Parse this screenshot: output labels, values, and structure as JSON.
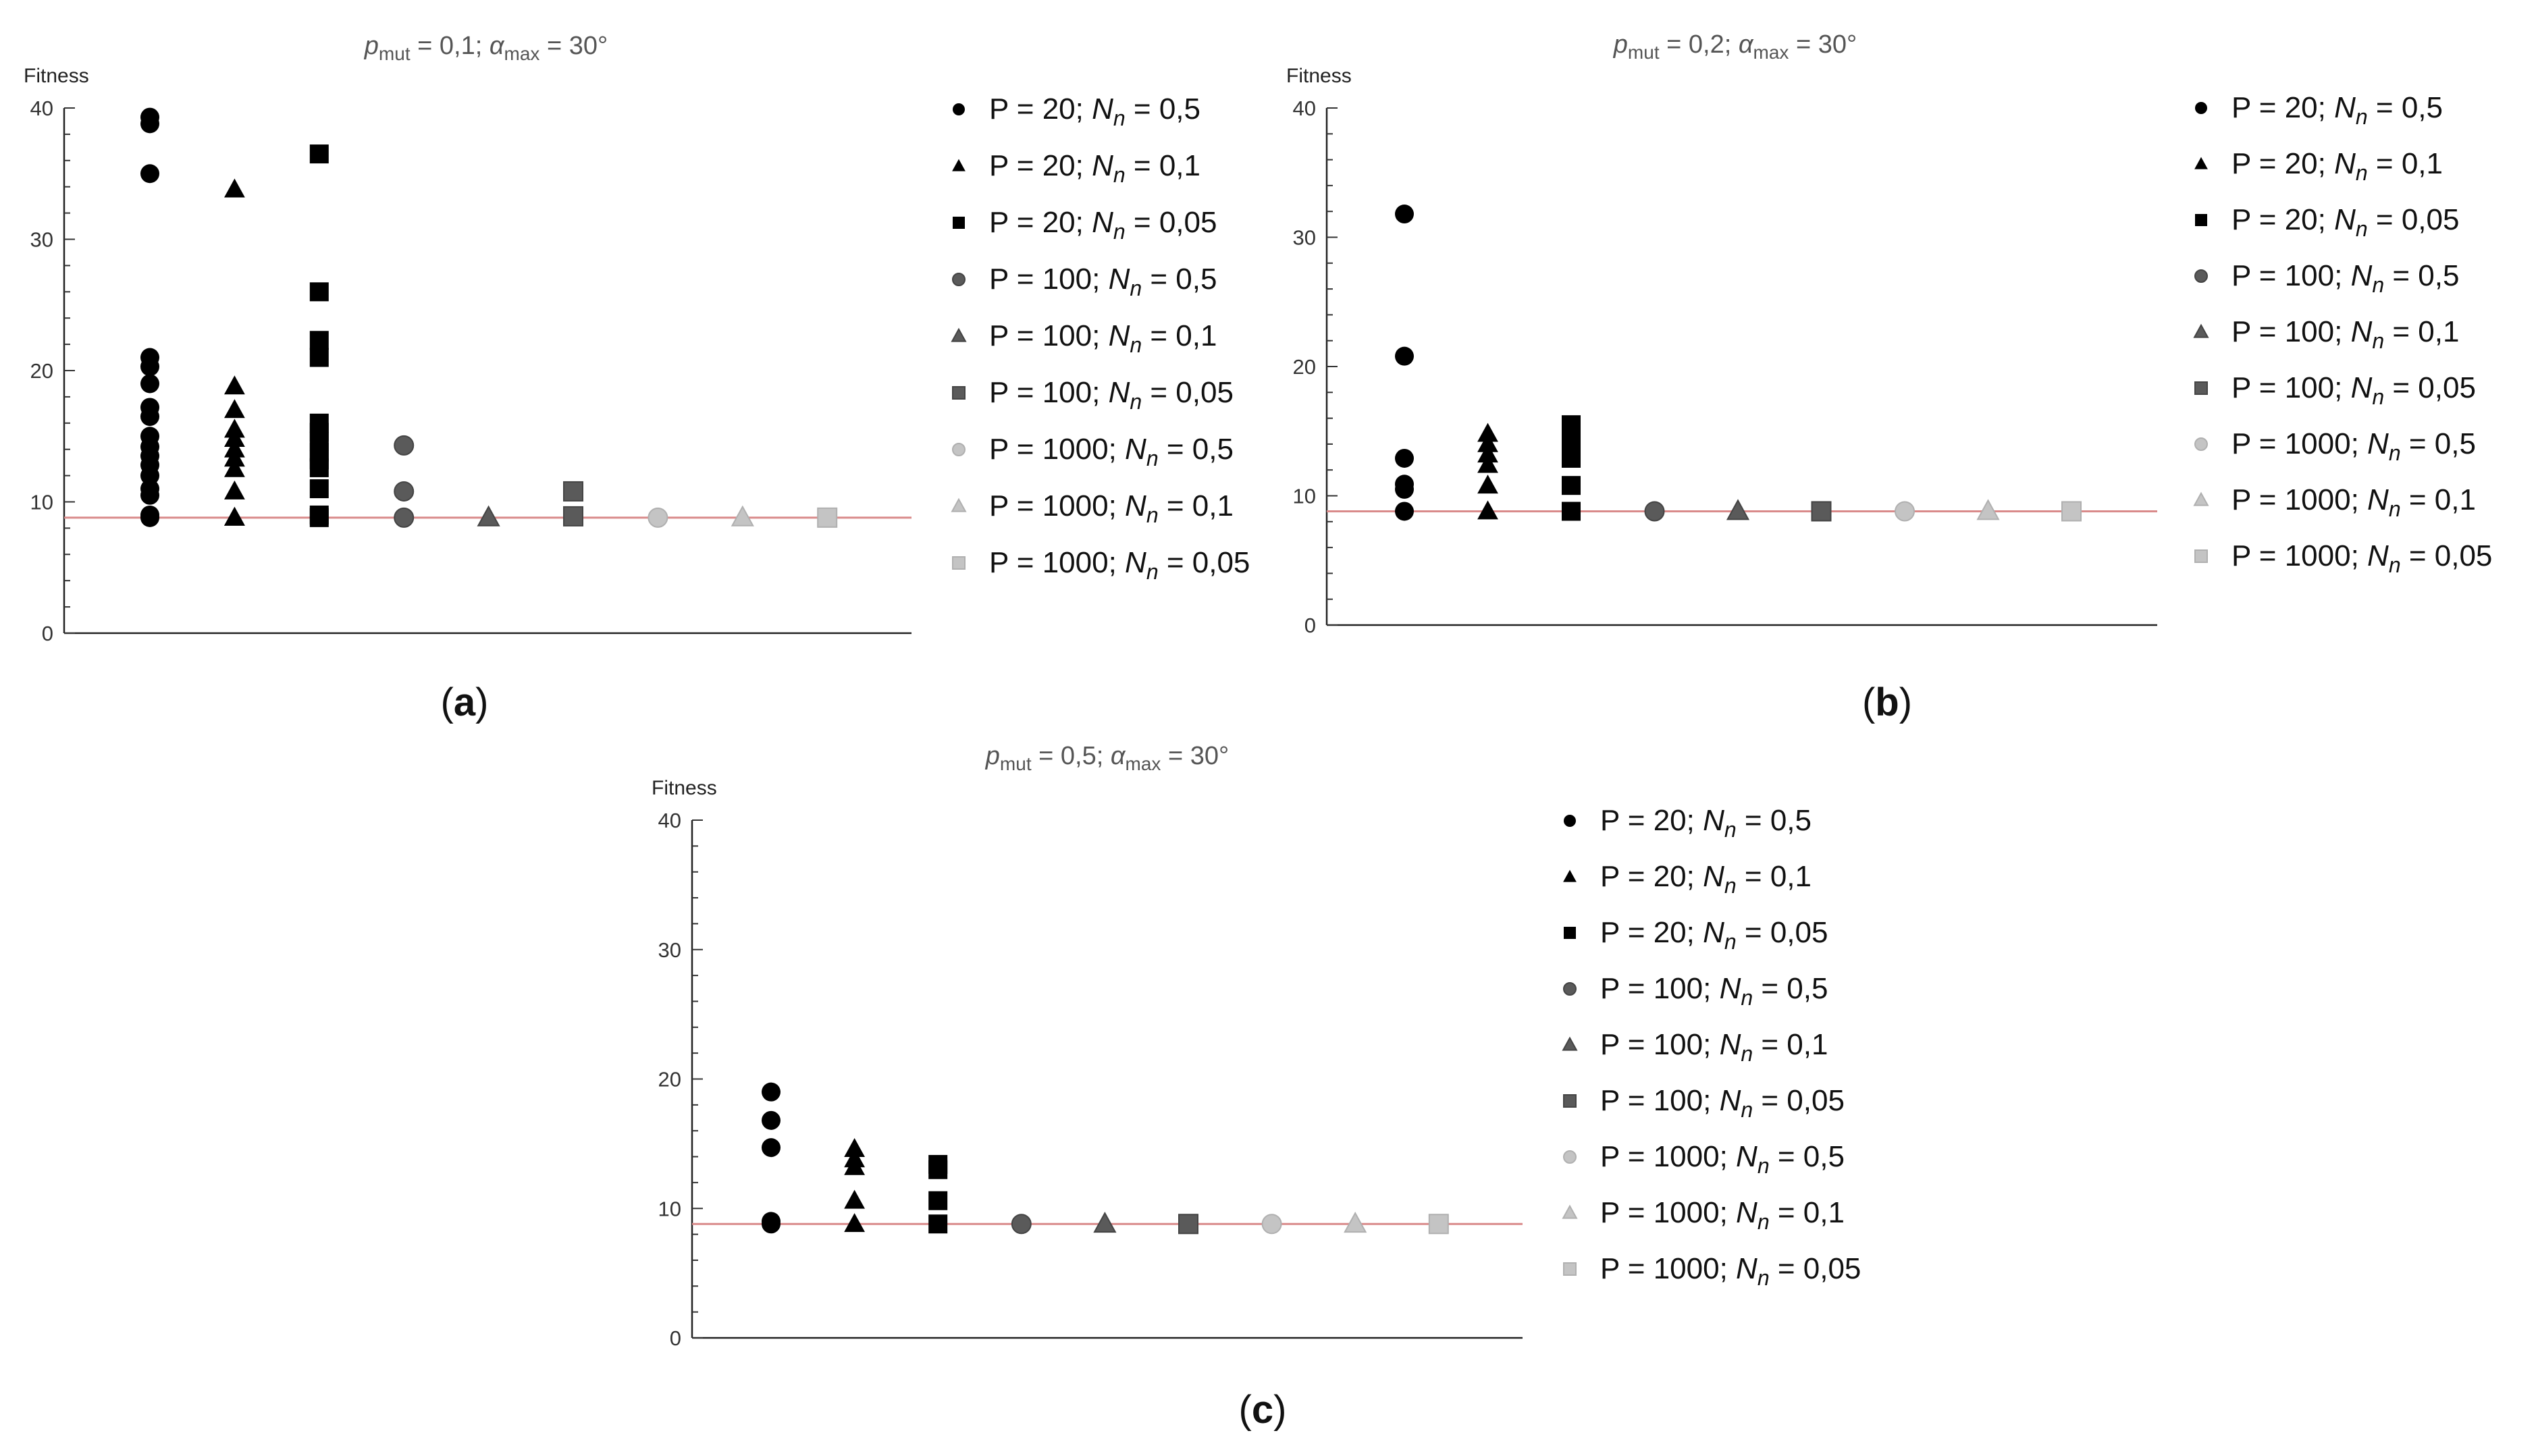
{
  "figure": {
    "panel_labels": [
      "a",
      "b",
      "c"
    ],
    "shared": {
      "ylabel": "Fitness",
      "ylim": [
        0,
        40
      ],
      "yticks": [
        "0",
        "10",
        "20",
        "30",
        "40"
      ],
      "reference_line": {
        "value": 8.8,
        "color": "#d98a8a"
      }
    }
  },
  "chart_data": [
    {
      "type": "scatter",
      "title": {
        "p": "p",
        "sub1": "mut",
        "mid": " = 0,1; ",
        "alpha": "α",
        "sub2": "max",
        "end": " = 30°"
      },
      "legend": [
        {
          "pre": "P = 20; ",
          "n": "N",
          "sub": "n",
          "post": " = 0,5"
        },
        {
          "pre": "P = 20; ",
          "n": "N",
          "sub": "n",
          "post": " = 0,1"
        },
        {
          "pre": "P = 20; ",
          "n": "N",
          "sub": "n",
          "post": " = 0,05"
        },
        {
          "pre": "P = 100; ",
          "n": "N",
          "sub": "n",
          "post": " = 0,5"
        },
        {
          "pre": "P = 100; ",
          "n": "N",
          "sub": "n",
          "post": " = 0,1"
        },
        {
          "pre": "P = 100; ",
          "n": "N",
          "sub": "n",
          "post": " = 0,05"
        },
        {
          "pre": "P = 1000; ",
          "n": "N",
          "sub": "n",
          "post": " = 0,5"
        },
        {
          "pre": "P = 1000; ",
          "n": "N",
          "sub": "n",
          "post": " = 0,1"
        },
        {
          "pre": "P = 1000; ",
          "n": "N",
          "sub": "n",
          "post": " = 0,05"
        }
      ],
      "series": [
        {
          "shape": "circle",
          "color": "#000000",
          "values": [
            39.3,
            38.8,
            35,
            21,
            20.3,
            19,
            17.2,
            16.5,
            15,
            14.2,
            13.5,
            12.8,
            12,
            11,
            10.5,
            9,
            8.8
          ]
        },
        {
          "shape": "triangle",
          "color": "#000000",
          "values": [
            33.8,
            18.8,
            17,
            15.5,
            14.8,
            14,
            13.3,
            12.5,
            10.8,
            8.8,
            8.8
          ]
        },
        {
          "shape": "square",
          "color": "#000000",
          "values": [
            36.5,
            26,
            22.3,
            21,
            16,
            15.3,
            14.6,
            13.8,
            13.2,
            12.6,
            11,
            9,
            8.8
          ]
        },
        {
          "shape": "circle",
          "color": "#5a5a5a",
          "values": [
            14.3,
            10.8,
            8.8
          ]
        },
        {
          "shape": "triangle",
          "color": "#5a5a5a",
          "values": [
            8.8
          ]
        },
        {
          "shape": "square",
          "color": "#5a5a5a",
          "values": [
            10.8,
            8.9
          ]
        },
        {
          "shape": "circle",
          "color": "#c4c4c4",
          "values": [
            8.8
          ]
        },
        {
          "shape": "triangle",
          "color": "#c4c4c4",
          "values": [
            8.8
          ]
        },
        {
          "shape": "square",
          "color": "#c4c4c4",
          "values": [
            8.8
          ]
        }
      ]
    },
    {
      "type": "scatter",
      "title": {
        "p": "p",
        "sub1": "mut",
        "mid": " = 0,2; ",
        "alpha": "α",
        "sub2": "max",
        "end": " = 30°"
      },
      "legend": [
        {
          "pre": "P = 20; ",
          "n": "N",
          "sub": "n",
          "post": " = 0,5"
        },
        {
          "pre": "P = 20; ",
          "n": "N",
          "sub": "n",
          "post": " = 0,1"
        },
        {
          "pre": "P = 20; ",
          "n": "N",
          "sub": "n",
          "post": " = 0,05"
        },
        {
          "pre": "P = 100; ",
          "n": "N",
          "sub": "n",
          "post": " = 0,5"
        },
        {
          "pre": "P = 100; ",
          "n": "N",
          "sub": "n",
          "post": " = 0,1"
        },
        {
          "pre": "P = 100; ",
          "n": "N",
          "sub": "n",
          "post": " = 0,05"
        },
        {
          "pre": "P = 1000; ",
          "n": "N",
          "sub": "n",
          "post": " = 0,5"
        },
        {
          "pre": "P = 1000; ",
          "n": "N",
          "sub": "n",
          "post": " = 0,1"
        },
        {
          "pre": "P = 1000; ",
          "n": "N",
          "sub": "n",
          "post": " = 0,05"
        }
      ],
      "series": [
        {
          "shape": "circle",
          "color": "#000000",
          "values": [
            31.8,
            20.8,
            12.9,
            10.9,
            10.5,
            8.8
          ]
        },
        {
          "shape": "triangle",
          "color": "#000000",
          "values": [
            14.8,
            14,
            13.2,
            12.4,
            10.8,
            8.8
          ]
        },
        {
          "shape": "square",
          "color": "#000000",
          "values": [
            15.5,
            14.8,
            14.1,
            13.4,
            12.9,
            10.8,
            8.8
          ]
        },
        {
          "shape": "circle",
          "color": "#5a5a5a",
          "values": [
            8.8
          ]
        },
        {
          "shape": "triangle",
          "color": "#5a5a5a",
          "values": [
            8.8
          ]
        },
        {
          "shape": "square",
          "color": "#5a5a5a",
          "values": [
            8.8
          ]
        },
        {
          "shape": "circle",
          "color": "#c4c4c4",
          "values": [
            8.8
          ]
        },
        {
          "shape": "triangle",
          "color": "#c4c4c4",
          "values": [
            8.8
          ]
        },
        {
          "shape": "square",
          "color": "#c4c4c4",
          "values": [
            8.8
          ]
        }
      ]
    },
    {
      "type": "scatter",
      "title": {
        "p": "p",
        "sub1": "mut",
        "mid": " = 0,5; ",
        "alpha": "α",
        "sub2": "max",
        "end": " = 30°"
      },
      "legend": [
        {
          "pre": "P = 20; ",
          "n": "N",
          "sub": "n",
          "post": " = 0,5"
        },
        {
          "pre": "P = 20; ",
          "n": "N",
          "sub": "n",
          "post": " = 0,1"
        },
        {
          "pre": "P = 20; ",
          "n": "N",
          "sub": "n",
          "post": " = 0,05"
        },
        {
          "pre": "P = 100; ",
          "n": "N",
          "sub": "n",
          "post": " = 0,5"
        },
        {
          "pre": "P = 100; ",
          "n": "N",
          "sub": "n",
          "post": " = 0,1"
        },
        {
          "pre": "P = 100; ",
          "n": "N",
          "sub": "n",
          "post": " = 0,05"
        },
        {
          "pre": "P = 1000; ",
          "n": "N",
          "sub": "n",
          "post": " = 0,5"
        },
        {
          "pre": "P = 1000; ",
          "n": "N",
          "sub": "n",
          "post": " = 0,1"
        },
        {
          "pre": "P = 1000; ",
          "n": "N",
          "sub": "n",
          "post": " = 0,05"
        }
      ],
      "series": [
        {
          "shape": "circle",
          "color": "#000000",
          "values": [
            19,
            16.8,
            14.7,
            9,
            8.8
          ]
        },
        {
          "shape": "triangle",
          "color": "#000000",
          "values": [
            14.6,
            13.8,
            13.2,
            10.6,
            8.8
          ]
        },
        {
          "shape": "square",
          "color": "#000000",
          "values": [
            13.4,
            13,
            10.6,
            8.8
          ]
        },
        {
          "shape": "circle",
          "color": "#5a5a5a",
          "values": [
            8.8
          ]
        },
        {
          "shape": "triangle",
          "color": "#5a5a5a",
          "values": [
            8.8
          ]
        },
        {
          "shape": "square",
          "color": "#5a5a5a",
          "values": [
            8.8
          ]
        },
        {
          "shape": "circle",
          "color": "#c4c4c4",
          "values": [
            8.8
          ]
        },
        {
          "shape": "triangle",
          "color": "#c4c4c4",
          "values": [
            8.8
          ]
        },
        {
          "shape": "square",
          "color": "#c4c4c4",
          "values": [
            8.8
          ]
        }
      ]
    }
  ]
}
